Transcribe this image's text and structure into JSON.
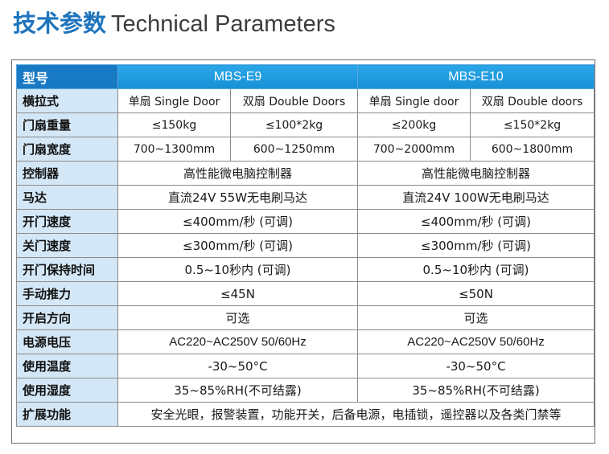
{
  "title": {
    "cn": "技术参数",
    "en": "Technical Parameters"
  },
  "header": {
    "label": "型号",
    "model_a": "MBS-E9",
    "model_b": "MBS-E10"
  },
  "door_type": {
    "label": "横拉式",
    "a_single": "单扇 Single Door",
    "a_double": "双扇 Double Doors",
    "b_single": "单扇 Single door",
    "b_double": "双扇 Double doors"
  },
  "weight": {
    "label": "门扇重量",
    "a_single": "≤150kg",
    "a_double": "≤100*2kg",
    "b_single": "≤200kg",
    "b_double": "≤150*2kg"
  },
  "width": {
    "label": "门扇宽度",
    "a_single": "700~1300mm",
    "a_double": "600~1250mm",
    "b_single": "700~2000mm",
    "b_double": "600~1800mm"
  },
  "rows": [
    {
      "label": "控制器",
      "a": "高性能微电脑控制器",
      "b": "高性能微电脑控制器"
    },
    {
      "label": "马达",
      "a": "直流24V 55W无电刷马达",
      "b": "直流24V 100W无电刷马达"
    },
    {
      "label": "开门速度",
      "a": "≤400mm/秒 (可调)",
      "b": "≤400mm/秒 (可调)"
    },
    {
      "label": "关门速度",
      "a": "≤300mm/秒 (可调)",
      "b": "≤300mm/秒 (可调)"
    },
    {
      "label": "开门保持时间",
      "a": "0.5~10秒内 (可调)",
      "b": "0.5~10秒内 (可调)"
    },
    {
      "label": "手动推力",
      "a": "≤45N",
      "b": "≤50N"
    },
    {
      "label": "开启方向",
      "a": "可选",
      "b": "可选"
    },
    {
      "label": "电源电压",
      "a": "AC220~AC250V  50/60Hz",
      "b": "AC220~AC250V  50/60Hz"
    },
    {
      "label": "使用温度",
      "a": "-30~50°C",
      "b": "-30~50°C"
    },
    {
      "label": "使用湿度",
      "a": "35~85%RH(不可结露)",
      "b": "35~85%RH(不可结露)"
    }
  ],
  "extension": {
    "label": "扩展功能",
    "value": "安全光眼，报警装置，功能开关，后备电源，电插锁，遥控器以及各类门禁等"
  },
  "colors": {
    "title_blue": "#1d74bd",
    "header_blue": "#1790d6",
    "label_bg": "#d4e7f6"
  }
}
